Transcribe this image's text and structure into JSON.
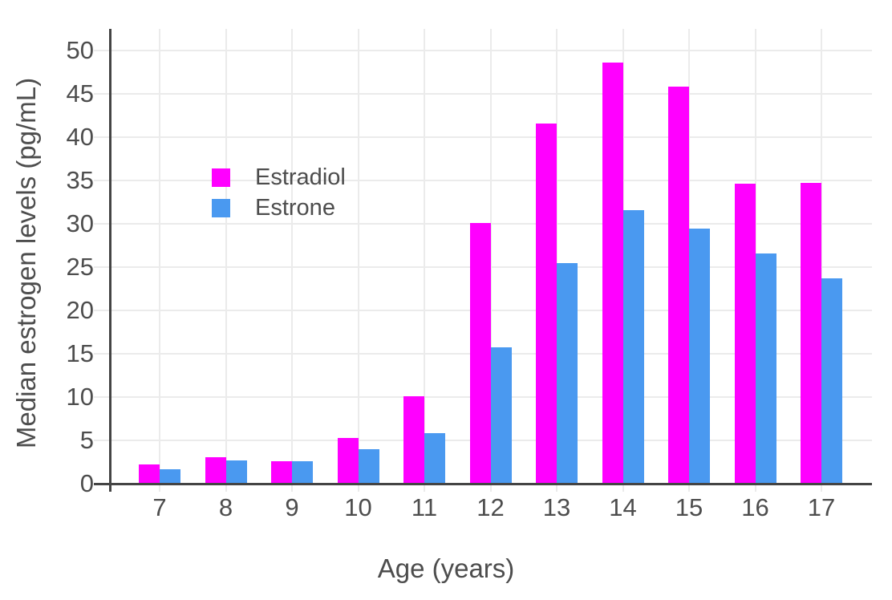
{
  "chart_data": {
    "type": "bar",
    "title": "",
    "xlabel": "Age (years)",
    "ylabel": "Median estrogen levels (pg/mL)",
    "categories": [
      "7",
      "8",
      "9",
      "10",
      "11",
      "12",
      "13",
      "14",
      "15",
      "16",
      "17"
    ],
    "series": [
      {
        "name": "Estradiol",
        "color": "#FF00FF",
        "values": [
          2.2,
          3.1,
          2.6,
          5.3,
          10.1,
          30.1,
          41.6,
          48.6,
          45.8,
          34.6,
          34.7
        ]
      },
      {
        "name": "Estrone",
        "color": "#4A99F0",
        "values": [
          1.7,
          2.7,
          2.6,
          4.0,
          5.8,
          15.7,
          25.5,
          31.6,
          29.4,
          26.6,
          23.7
        ]
      }
    ],
    "ylim": [
      0,
      52.5
    ],
    "yticks": [
      0,
      5,
      10,
      15,
      20,
      25,
      30,
      35,
      40,
      45,
      50
    ],
    "grid": true,
    "legend_position": "inside-top-left",
    "bar_mode": "grouped"
  },
  "colors": {
    "estradiol": "#FF00FF",
    "estrone": "#4A99F0",
    "gridline": "#EBEBEB",
    "axis_line": "#444444",
    "text": "#4D4D4D",
    "background": "#FFFFFF"
  },
  "legend": {
    "items": [
      {
        "label": "Estradiol",
        "color": "#FF00FF"
      },
      {
        "label": "Estrone",
        "color": "#4A99F0"
      }
    ]
  }
}
